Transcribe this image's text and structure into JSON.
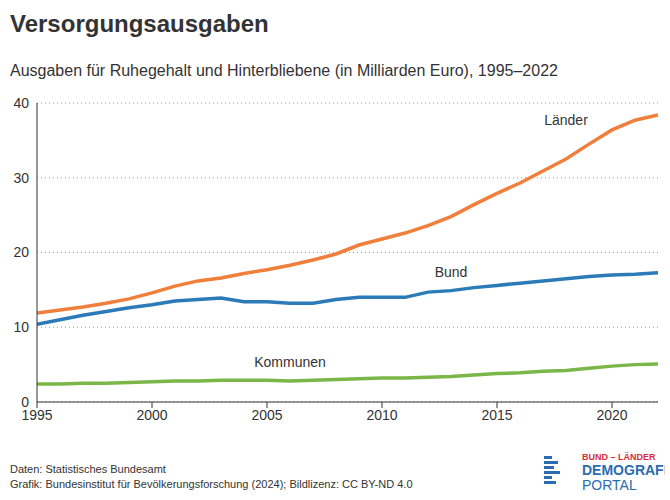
{
  "chart_data": {
    "type": "line",
    "title": "Versorgungsausgaben",
    "subtitle": "Ausgaben für Ruhegehalt und Hinterbliebene (in Milliarden Euro), 1995–2022",
    "x": [
      1995,
      1996,
      1997,
      1998,
      1999,
      2000,
      2001,
      2002,
      2003,
      2004,
      2005,
      2006,
      2007,
      2008,
      2009,
      2010,
      2011,
      2012,
      2013,
      2014,
      2015,
      2016,
      2017,
      2018,
      2019,
      2020,
      2021,
      2022
    ],
    "series": [
      {
        "name": "Länder",
        "color": "#f07f3c",
        "values": [
          11.9,
          12.3,
          12.7,
          13.2,
          13.8,
          14.6,
          15.5,
          16.2,
          16.6,
          17.2,
          17.7,
          18.3,
          19.0,
          19.8,
          21.0,
          21.8,
          22.6,
          23.6,
          24.8,
          26.4,
          27.9,
          29.3,
          30.9,
          32.5,
          34.5,
          36.4,
          37.7,
          38.4
        ]
      },
      {
        "name": "Bund",
        "color": "#2b7bb9",
        "values": [
          10.4,
          11.0,
          11.6,
          12.1,
          12.6,
          13.0,
          13.5,
          13.7,
          13.9,
          13.4,
          13.4,
          13.2,
          13.2,
          13.7,
          14.0,
          14.0,
          14.0,
          14.7,
          14.9,
          15.3,
          15.6,
          15.9,
          16.2,
          16.5,
          16.8,
          17.0,
          17.1,
          17.3
        ]
      },
      {
        "name": "Kommunen",
        "color": "#7ab648",
        "values": [
          2.4,
          2.4,
          2.5,
          2.5,
          2.6,
          2.7,
          2.8,
          2.8,
          2.9,
          2.9,
          2.9,
          2.8,
          2.9,
          3.0,
          3.1,
          3.2,
          3.2,
          3.3,
          3.4,
          3.6,
          3.8,
          3.9,
          4.1,
          4.2,
          4.5,
          4.8,
          5.0,
          5.1
        ]
      }
    ],
    "xlim": [
      1995,
      2022
    ],
    "xticks": [
      1995,
      2000,
      2005,
      2010,
      2015,
      2020
    ],
    "ylim": [
      0,
      40
    ],
    "yticks": [
      0,
      10,
      20,
      30,
      40
    ],
    "grid": true,
    "source": "Daten: Statistisches Bundesamt",
    "credit": "Grafik: Bundesinstitut für Bevölkerungsforschung (2024); Bildlizenz: CC BY-ND 4.0",
    "logo": [
      "BUND – LÄNDER",
      "DEMOGRAFIE",
      "PORTAL"
    ]
  }
}
